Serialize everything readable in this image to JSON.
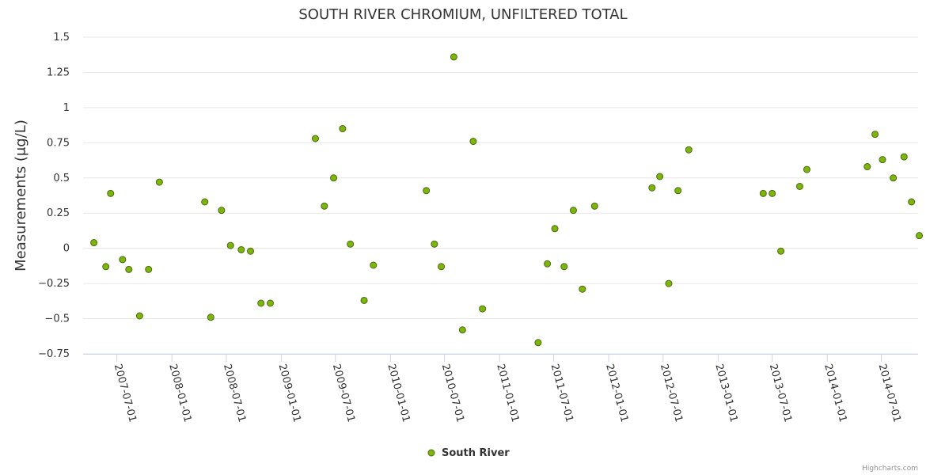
{
  "chart_data": {
    "type": "scatter",
    "title": "SOUTH RIVER CHROMIUM, UNFILTERED TOTAL",
    "ylabel": "Measurements (μg/L)",
    "xlabel": "",
    "ylim": [
      -0.75,
      1.5
    ],
    "yticks": [
      "1.5",
      "1.25",
      "1",
      "0.75",
      "0.5",
      "0.25",
      "0",
      "−0.25",
      "−0.5",
      "−0.75"
    ],
    "xlim": [
      "2007-03-10",
      "2014-11-01"
    ],
    "xticks": [
      "2007-07-01",
      "2008-01-01",
      "2008-07-01",
      "2009-01-01",
      "2009-07-01",
      "2010-01-01",
      "2010-07-01",
      "2011-01-01",
      "2011-07-01",
      "2012-01-01",
      "2012-07-01",
      "2013-01-01",
      "2013-07-01",
      "2014-01-01",
      "2014-07-01"
    ],
    "grid": true,
    "legend_position": "bottom-center",
    "series": [
      {
        "name": "South River",
        "color": "#7cb50b",
        "points": [
          {
            "x": "2007-04-15",
            "y": 0.04
          },
          {
            "x": "2007-05-25",
            "y": -0.13
          },
          {
            "x": "2007-06-10",
            "y": 0.39
          },
          {
            "x": "2007-07-20",
            "y": -0.08
          },
          {
            "x": "2007-08-10",
            "y": -0.15
          },
          {
            "x": "2007-09-15",
            "y": -0.48
          },
          {
            "x": "2007-10-15",
            "y": -0.15
          },
          {
            "x": "2007-11-20",
            "y": 0.47
          },
          {
            "x": "2008-04-20",
            "y": 0.33
          },
          {
            "x": "2008-05-10",
            "y": -0.49
          },
          {
            "x": "2008-06-15",
            "y": 0.27
          },
          {
            "x": "2008-07-15",
            "y": 0.02
          },
          {
            "x": "2008-08-20",
            "y": -0.01
          },
          {
            "x": "2008-09-20",
            "y": -0.02
          },
          {
            "x": "2008-10-25",
            "y": -0.39
          },
          {
            "x": "2008-11-25",
            "y": -0.39
          },
          {
            "x": "2009-04-25",
            "y": 0.78
          },
          {
            "x": "2009-05-25",
            "y": 0.3
          },
          {
            "x": "2009-06-25",
            "y": 0.5
          },
          {
            "x": "2009-07-25",
            "y": 0.85
          },
          {
            "x": "2009-08-20",
            "y": 0.03
          },
          {
            "x": "2009-10-05",
            "y": -0.37
          },
          {
            "x": "2009-11-05",
            "y": -0.12
          },
          {
            "x": "2010-05-01",
            "y": 0.41
          },
          {
            "x": "2010-05-28",
            "y": 0.03
          },
          {
            "x": "2010-06-20",
            "y": -0.13
          },
          {
            "x": "2010-08-01",
            "y": 1.36
          },
          {
            "x": "2010-08-30",
            "y": -0.58
          },
          {
            "x": "2010-10-05",
            "y": 0.76
          },
          {
            "x": "2010-11-05",
            "y": -0.43
          },
          {
            "x": "2011-05-10",
            "y": -0.67
          },
          {
            "x": "2011-06-10",
            "y": -0.11
          },
          {
            "x": "2011-07-05",
            "y": 0.14
          },
          {
            "x": "2011-08-05",
            "y": -0.13
          },
          {
            "x": "2011-09-05",
            "y": 0.27
          },
          {
            "x": "2011-10-05",
            "y": -0.29
          },
          {
            "x": "2011-11-15",
            "y": 0.3
          },
          {
            "x": "2012-05-25",
            "y": 0.43
          },
          {
            "x": "2012-06-20",
            "y": 0.51
          },
          {
            "x": "2012-07-20",
            "y": -0.25
          },
          {
            "x": "2012-08-20",
            "y": 0.41
          },
          {
            "x": "2012-09-25",
            "y": 0.7
          },
          {
            "x": "2013-06-01",
            "y": 0.39
          },
          {
            "x": "2013-07-01",
            "y": 0.39
          },
          {
            "x": "2013-07-30",
            "y": -0.02
          },
          {
            "x": "2013-10-01",
            "y": 0.44
          },
          {
            "x": "2013-10-25",
            "y": 0.56
          },
          {
            "x": "2014-05-15",
            "y": 0.58
          },
          {
            "x": "2014-06-10",
            "y": 0.81
          },
          {
            "x": "2014-07-05",
            "y": 0.63
          },
          {
            "x": "2014-08-10",
            "y": 0.5
          },
          {
            "x": "2014-09-15",
            "y": 0.65
          },
          {
            "x": "2014-10-10",
            "y": 0.33
          },
          {
            "x": "2014-11-05",
            "y": 0.09
          }
        ]
      }
    ]
  },
  "credits": "Highcharts.com"
}
